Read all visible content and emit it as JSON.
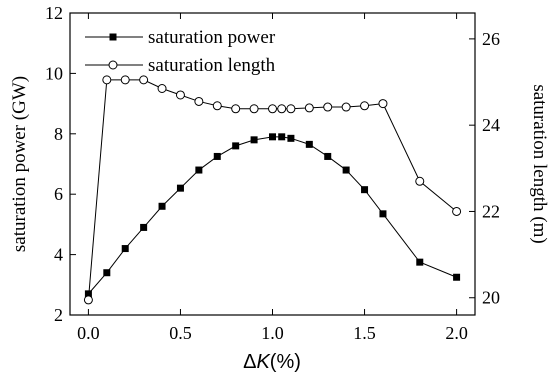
{
  "chart_data": {
    "type": "line",
    "xlabel": "ΔK(%)",
    "xlabel_delta": "Δ",
    "xlabel_var": "K",
    "xlabel_unit": "(%)",
    "ylabel_left": "saturation power (GW)",
    "ylabel_right": "saturation length (m)",
    "xlim": [
      -0.1,
      2.1
    ],
    "ylim_left": [
      2,
      12
    ],
    "ylim_right": [
      19.6,
      26.6
    ],
    "x_ticks": [
      0.0,
      0.5,
      1.0,
      1.5,
      2.0
    ],
    "x_tick_labels": [
      "0.0",
      "0.5",
      "1.0",
      "1.5",
      "2.0"
    ],
    "y_left_ticks": [
      2,
      4,
      6,
      8,
      10,
      12
    ],
    "y_left_tick_labels": [
      "2",
      "4",
      "6",
      "8",
      "10",
      "12"
    ],
    "y_right_ticks": [
      20,
      22,
      24,
      26
    ],
    "y_right_tick_labels": [
      "20",
      "22",
      "24",
      "26"
    ],
    "legend_position": "top-left",
    "series": [
      {
        "name": "saturation power",
        "axis": "left",
        "marker": "filled-square",
        "color": "#000000",
        "x": [
          0.0,
          0.1,
          0.2,
          0.3,
          0.4,
          0.5,
          0.6,
          0.7,
          0.8,
          0.9,
          1.0,
          1.05,
          1.1,
          1.2,
          1.3,
          1.4,
          1.5,
          1.6,
          1.8,
          2.0
        ],
        "y": [
          2.7,
          3.4,
          4.2,
          4.9,
          5.6,
          6.2,
          6.8,
          7.25,
          7.6,
          7.8,
          7.9,
          7.9,
          7.85,
          7.65,
          7.25,
          6.8,
          6.15,
          5.35,
          3.75,
          3.25
        ]
      },
      {
        "name": "saturation length",
        "axis": "right",
        "marker": "open-circle",
        "color": "#000000",
        "x": [
          0.0,
          0.1,
          0.2,
          0.3,
          0.4,
          0.5,
          0.6,
          0.7,
          0.8,
          0.9,
          1.0,
          1.05,
          1.1,
          1.2,
          1.3,
          1.4,
          1.5,
          1.6,
          1.8,
          2.0
        ],
        "y": [
          19.95,
          25.05,
          25.05,
          25.05,
          24.85,
          24.7,
          24.55,
          24.45,
          24.38,
          24.38,
          24.38,
          24.38,
          24.38,
          24.4,
          24.42,
          24.42,
          24.45,
          24.5,
          22.7,
          22.0
        ]
      }
    ]
  }
}
